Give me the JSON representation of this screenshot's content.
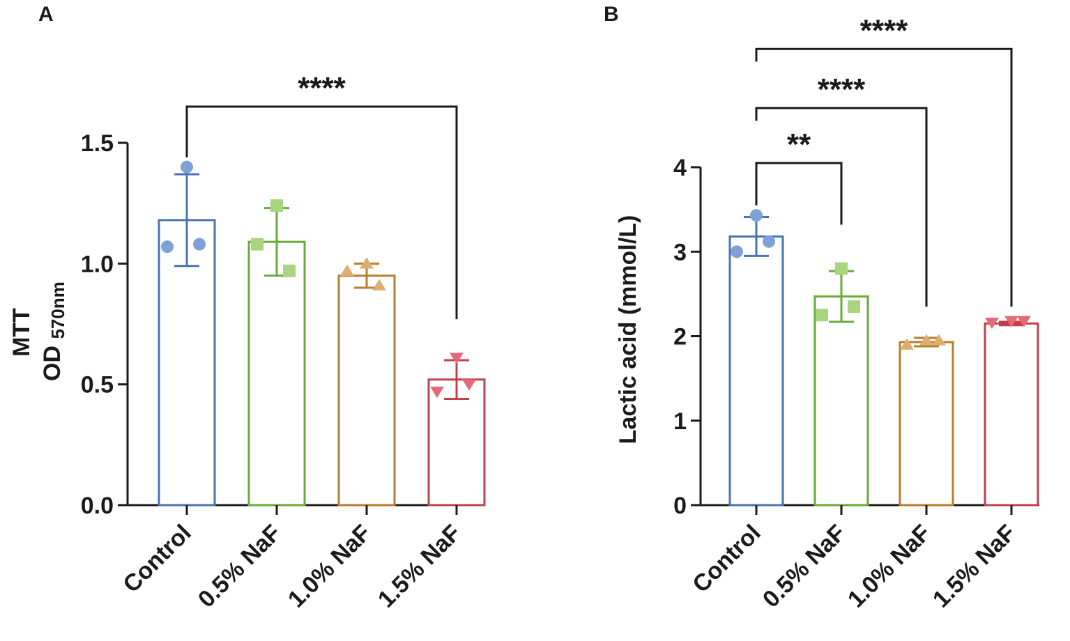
{
  "colors": {
    "Control": "#4a72b8",
    "0.5% NaF": "#6aaa3a",
    "1.0% NaF": "#b87d2e",
    "1.5% NaF": "#c0404c",
    "Control_point": "#7fa1d8",
    "0.5% NaF_point": "#a8d57e",
    "1.0% NaF_point": "#dcae72",
    "1.5% NaF_point": "#e5697a",
    "axis": "#1a1a1a"
  },
  "chart_data": [
    {
      "panel": "A",
      "type": "bar",
      "ylabel": "MTT",
      "ylabel_line2": "OD",
      "ylabel_sub": "570nm",
      "categories": [
        "Control",
        "0.5% NaF",
        "1.0% NaF",
        "1.5% NaF"
      ],
      "values": [
        1.18,
        1.09,
        0.95,
        0.52
      ],
      "errors": [
        0.19,
        0.14,
        0.05,
        0.08
      ],
      "points": [
        [
          1.4,
          1.07,
          1.08
        ],
        [
          1.24,
          1.08,
          0.97
        ],
        [
          1.0,
          0.97,
          0.91
        ],
        [
          0.61,
          0.47,
          0.5
        ]
      ],
      "markers": [
        "circle",
        "square",
        "triangle-up",
        "triangle-down"
      ],
      "ylim": [
        0,
        1.5
      ],
      "yticks": [
        "0.0",
        "0.5",
        "1.0",
        "1.5"
      ],
      "ytick_values": [
        0,
        0.5,
        1.0,
        1.5
      ],
      "brackets": [
        {
          "from": "Control",
          "to": "1.5% NaF",
          "label": "****",
          "level": 1.65,
          "left_end": 1.44,
          "right_end": 0.77
        }
      ]
    },
    {
      "panel": "B",
      "type": "bar",
      "ylabel": "Lactic acid (mmol/L)",
      "categories": [
        "Control",
        "0.5% NaF",
        "1.0% NaF",
        "1.5% NaF"
      ],
      "values": [
        3.18,
        2.47,
        1.93,
        2.15
      ],
      "errors": [
        0.23,
        0.3,
        0.05,
        0.02
      ],
      "points": [
        [
          3.43,
          3.0,
          3.12
        ],
        [
          2.8,
          2.25,
          2.35
        ],
        [
          1.95,
          1.9,
          1.95
        ],
        [
          2.18,
          2.16,
          2.18
        ]
      ],
      "markers": [
        "circle",
        "square",
        "triangle-up",
        "triangle-down"
      ],
      "ylim": [
        0,
        4
      ],
      "yticks": [
        "0",
        "1",
        "2",
        "3",
        "4"
      ],
      "ytick_values": [
        0,
        1,
        2,
        3,
        4
      ],
      "brackets": [
        {
          "from": "Control",
          "to": "0.5% NaF",
          "label": "**",
          "level": 4.05,
          "left_end": 3.55,
          "right_end": 3.32
        },
        {
          "from": "Control",
          "to": "1.0% NaF",
          "label": "****",
          "level": 4.7,
          "left_end": 4.55,
          "right_end": 2.35
        },
        {
          "from": "Control",
          "to": "1.5% NaF",
          "label": "****",
          "level": 5.4,
          "left_end": 5.25,
          "right_end": 2.35
        }
      ]
    }
  ]
}
